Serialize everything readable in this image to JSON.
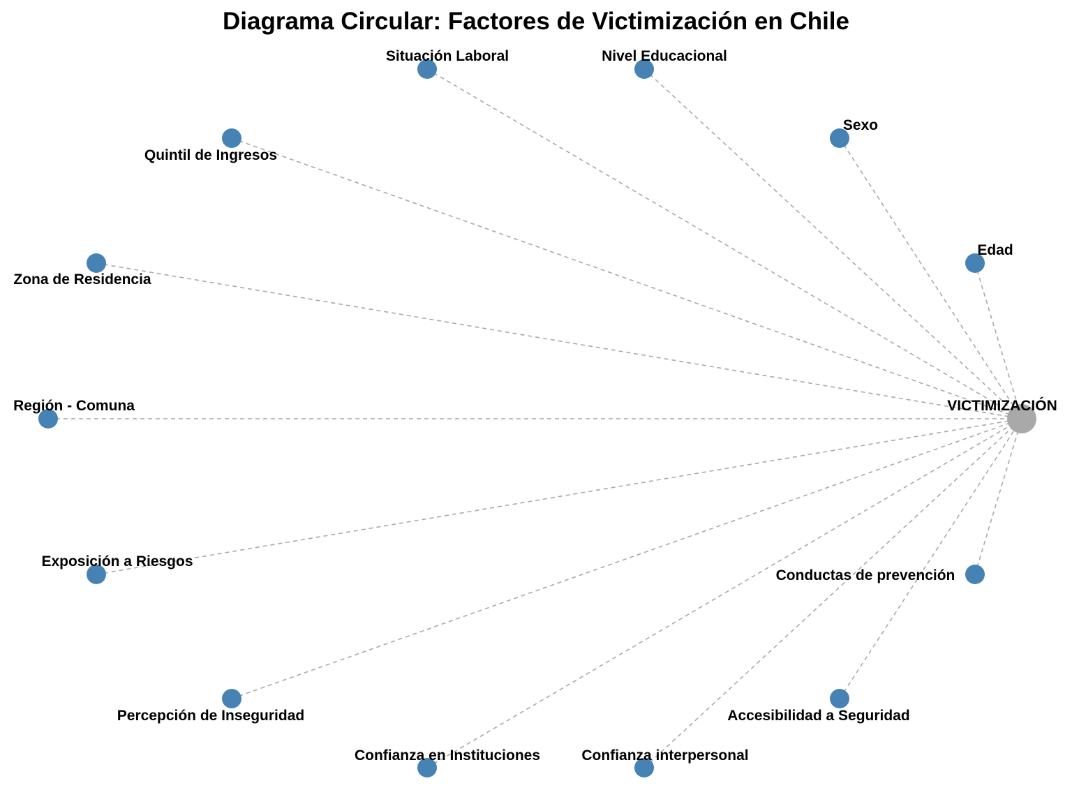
{
  "title": "Diagrama Circular: Factores de Victimización en Chile",
  "colors": {
    "factor_node": "#4682B4",
    "center_node": "#A9A9A9",
    "edge": "#A9A9A9",
    "text": "#000000"
  },
  "center": {
    "id": "victimizacion",
    "label": "VICTIMIZACIÓN"
  },
  "factors": [
    {
      "id": "edad",
      "label": "Edad"
    },
    {
      "id": "sexo",
      "label": "Sexo"
    },
    {
      "id": "nivel-educacional",
      "label": "Nivel Educacional"
    },
    {
      "id": "situacion-laboral",
      "label": "Situación Laboral"
    },
    {
      "id": "quintil-de-ingresos",
      "label": "Quintil de Ingresos"
    },
    {
      "id": "zona-de-residencia",
      "label": "Zona de Residencia"
    },
    {
      "id": "region-comuna",
      "label": "Región - Comuna"
    },
    {
      "id": "exposicion-a-riesgos",
      "label": "Exposición a Riesgos"
    },
    {
      "id": "percepcion-de-inseguridad",
      "label": "Percepción de Inseguridad"
    },
    {
      "id": "confianza-en-instituciones",
      "label": "Confianza en Instituciones"
    },
    {
      "id": "confianza-interpersonal",
      "label": "Confianza interpersonal"
    },
    {
      "id": "accesibilidad-a-seguridad",
      "label": "Accesibilidad a Seguridad"
    },
    {
      "id": "conductas-de-prevencion",
      "label": "Conductas de prevención"
    }
  ],
  "edges": [
    {
      "from": "edad",
      "to": "victimizacion"
    },
    {
      "from": "sexo",
      "to": "victimizacion"
    },
    {
      "from": "nivel-educacional",
      "to": "victimizacion"
    },
    {
      "from": "situacion-laboral",
      "to": "victimizacion"
    },
    {
      "from": "quintil-de-ingresos",
      "to": "victimizacion"
    },
    {
      "from": "zona-de-residencia",
      "to": "victimizacion"
    },
    {
      "from": "region-comuna",
      "to": "victimizacion"
    },
    {
      "from": "exposicion-a-riesgos",
      "to": "victimizacion"
    },
    {
      "from": "percepcion-de-inseguridad",
      "to": "victimizacion"
    },
    {
      "from": "confianza-en-instituciones",
      "to": "victimizacion"
    },
    {
      "from": "confianza-interpersonal",
      "to": "victimizacion"
    },
    {
      "from": "accesibilidad-a-seguridad",
      "to": "victimizacion"
    },
    {
      "from": "conductas-de-prevencion",
      "to": "victimizacion"
    }
  ]
}
